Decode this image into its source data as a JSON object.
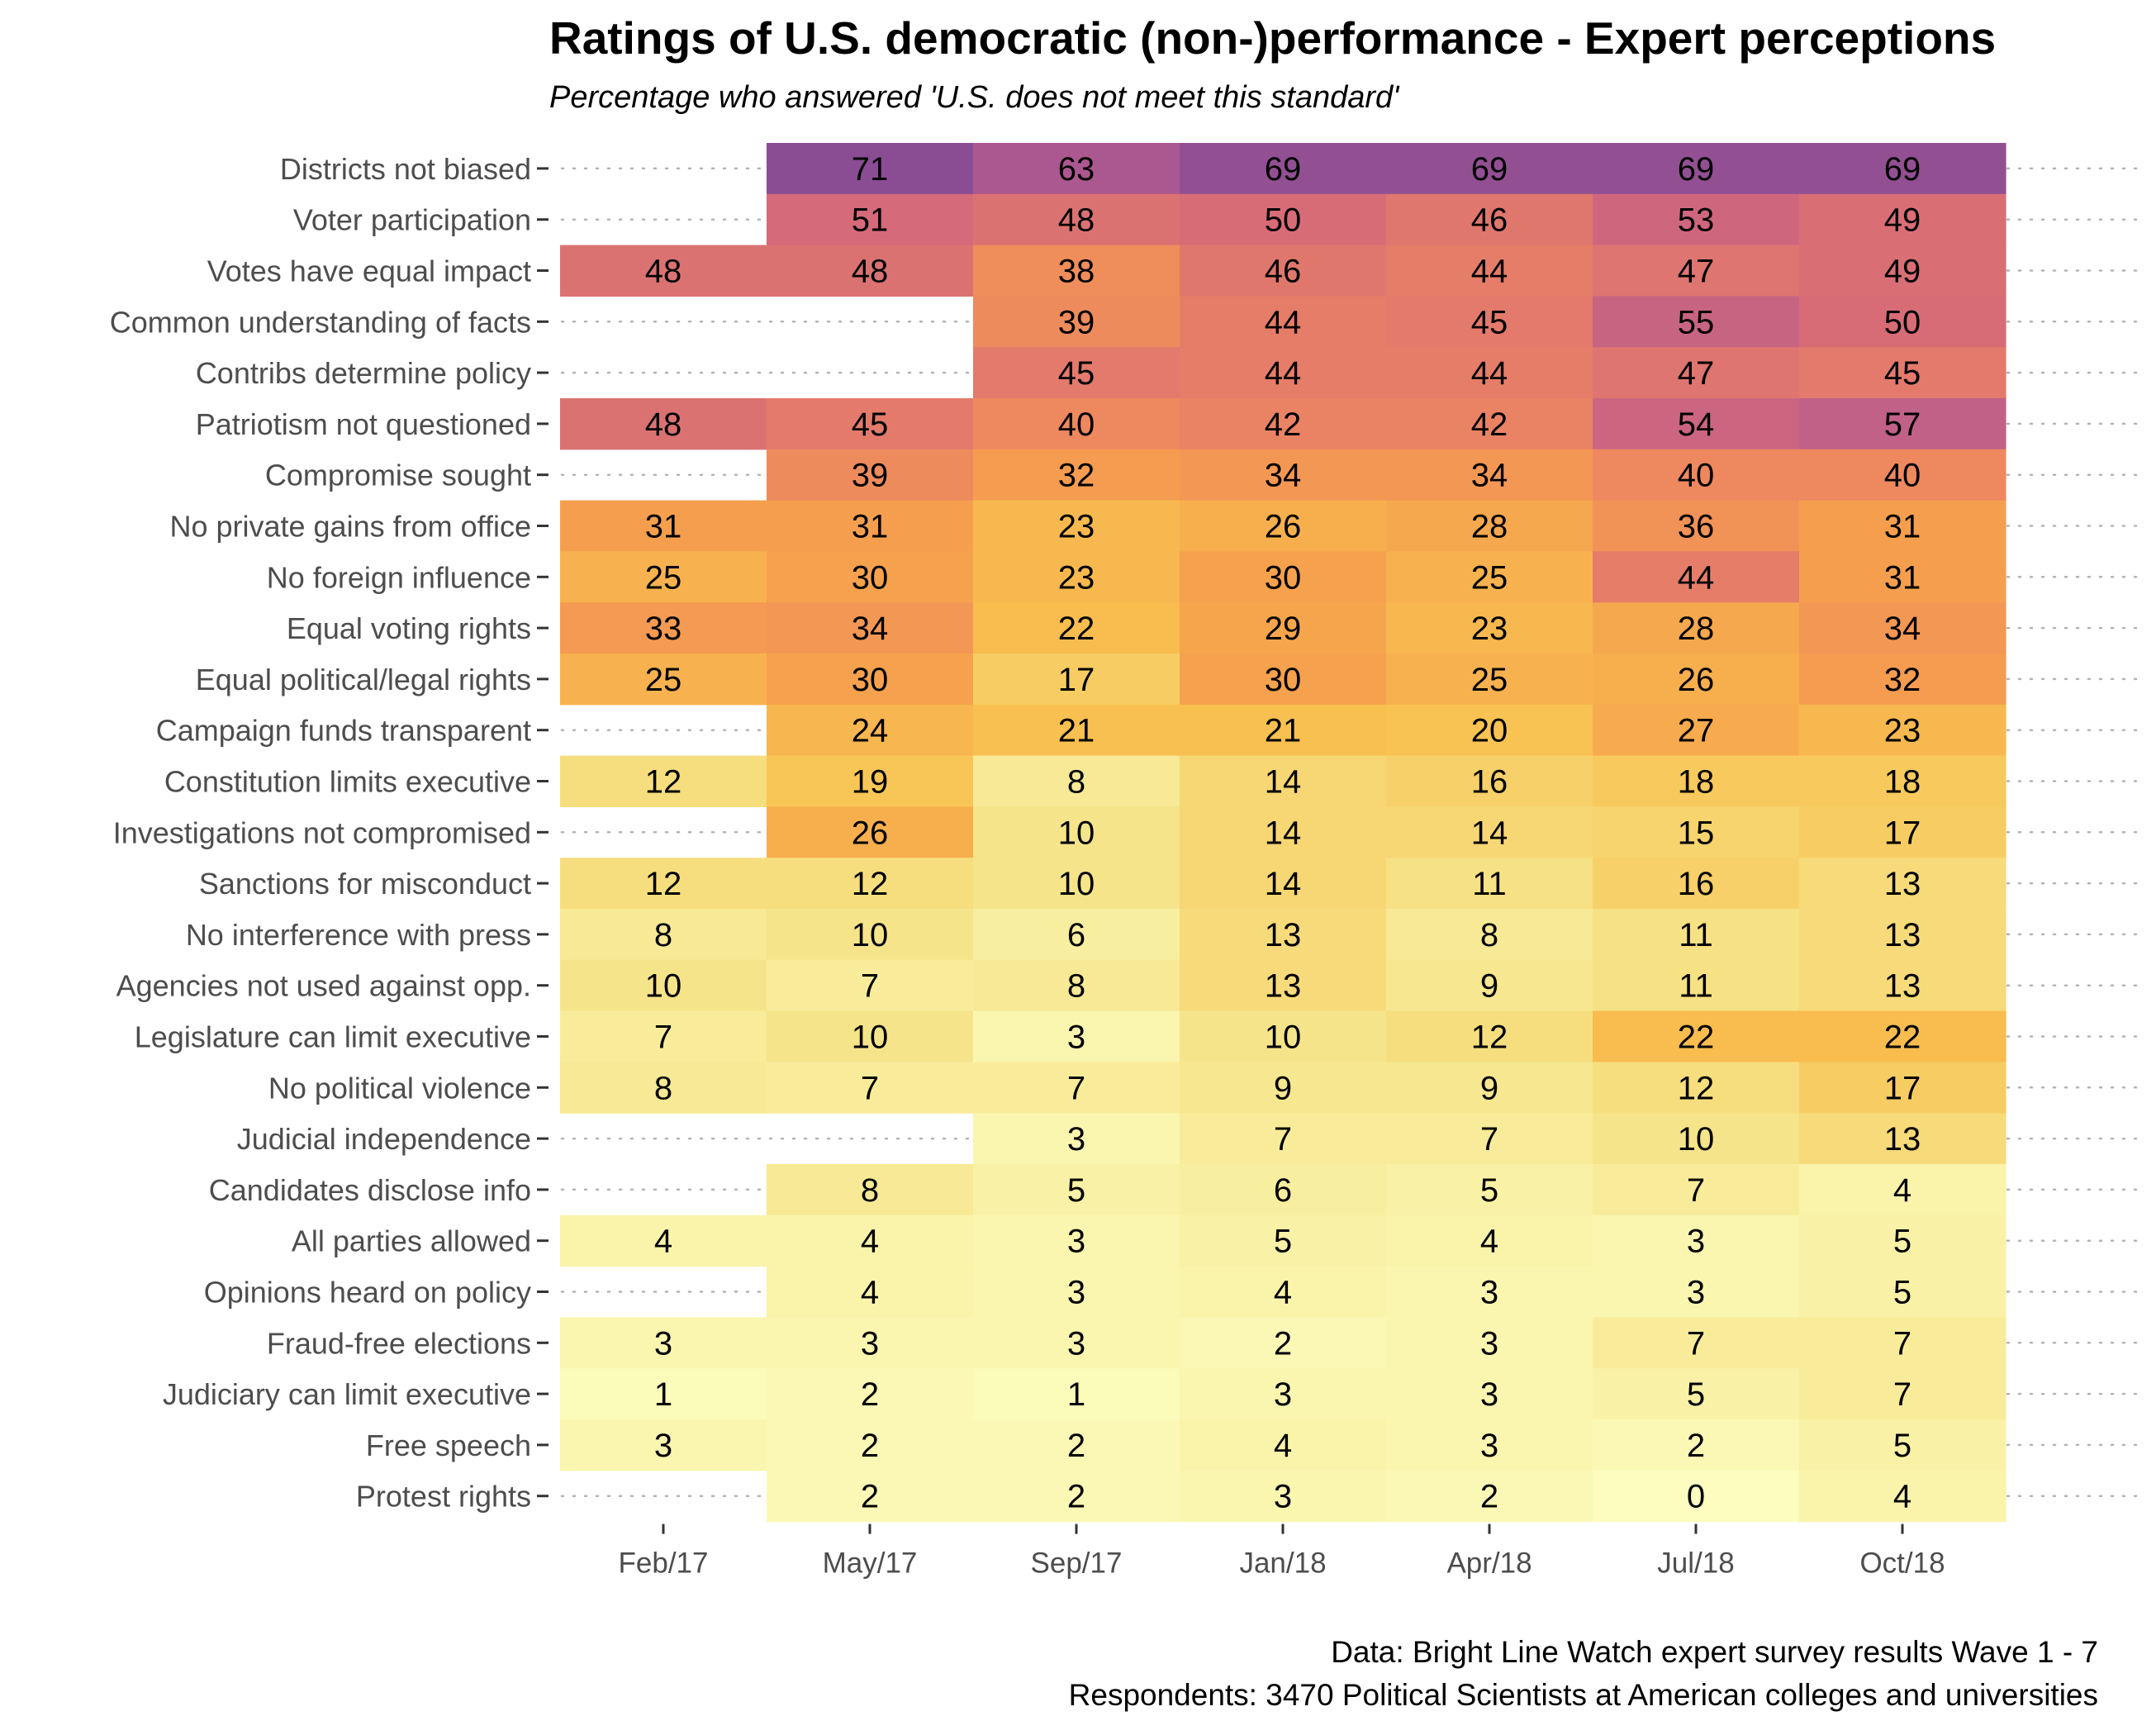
{
  "chart_data": {
    "type": "heatmap",
    "title": "Ratings of U.S. democratic (non-)performance - Expert perceptions",
    "subtitle": "Percentage who answered 'U.S. does not meet this standard'",
    "x_categories": [
      "Feb/17",
      "May/17",
      "Sep/17",
      "Jan/18",
      "Apr/18",
      "Jul/18",
      "Oct/18"
    ],
    "rows": [
      {
        "label": "Districts not biased",
        "values": [
          null,
          71,
          63,
          69,
          69,
          69,
          69
        ]
      },
      {
        "label": "Voter participation",
        "values": [
          null,
          51,
          48,
          50,
          46,
          53,
          49
        ]
      },
      {
        "label": "Votes have equal impact",
        "values": [
          48,
          48,
          38,
          46,
          44,
          47,
          49
        ]
      },
      {
        "label": "Common understanding of facts",
        "values": [
          null,
          null,
          39,
          44,
          45,
          55,
          50
        ]
      },
      {
        "label": "Contribs determine policy",
        "values": [
          null,
          null,
          45,
          44,
          44,
          47,
          45
        ]
      },
      {
        "label": "Patriotism not questioned",
        "values": [
          48,
          45,
          40,
          42,
          42,
          54,
          57
        ]
      },
      {
        "label": "Compromise sought",
        "values": [
          null,
          39,
          32,
          34,
          34,
          40,
          40
        ]
      },
      {
        "label": "No private gains from office",
        "values": [
          31,
          31,
          23,
          26,
          28,
          36,
          31
        ]
      },
      {
        "label": "No foreign influence",
        "values": [
          25,
          30,
          23,
          30,
          25,
          44,
          31
        ]
      },
      {
        "label": "Equal voting rights",
        "values": [
          33,
          34,
          22,
          29,
          23,
          28,
          34
        ]
      },
      {
        "label": "Equal political/legal rights",
        "values": [
          25,
          30,
          17,
          30,
          25,
          26,
          32
        ]
      },
      {
        "label": "Campaign funds transparent",
        "values": [
          null,
          24,
          21,
          21,
          20,
          27,
          23
        ]
      },
      {
        "label": "Constitution limits executive",
        "values": [
          12,
          19,
          8,
          14,
          16,
          18,
          18
        ]
      },
      {
        "label": "Investigations not compromised",
        "values": [
          null,
          26,
          10,
          14,
          14,
          15,
          17
        ]
      },
      {
        "label": "Sanctions for misconduct",
        "values": [
          12,
          12,
          10,
          14,
          11,
          16,
          13
        ]
      },
      {
        "label": "No interference with press",
        "values": [
          8,
          10,
          6,
          13,
          8,
          11,
          13
        ]
      },
      {
        "label": "Agencies not used against opp.",
        "values": [
          10,
          7,
          8,
          13,
          9,
          11,
          13
        ]
      },
      {
        "label": "Legislature can limit executive",
        "values": [
          7,
          10,
          3,
          10,
          12,
          22,
          22
        ]
      },
      {
        "label": "No political violence",
        "values": [
          8,
          7,
          7,
          9,
          9,
          12,
          17
        ]
      },
      {
        "label": "Judicial independence",
        "values": [
          null,
          null,
          3,
          7,
          7,
          10,
          13
        ]
      },
      {
        "label": "Candidates disclose info",
        "values": [
          null,
          8,
          5,
          6,
          5,
          7,
          4
        ]
      },
      {
        "label": "All parties allowed",
        "values": [
          4,
          4,
          3,
          5,
          4,
          3,
          5
        ]
      },
      {
        "label": "Opinions heard on policy",
        "values": [
          null,
          4,
          3,
          4,
          3,
          3,
          5
        ]
      },
      {
        "label": "Fraud-free elections",
        "values": [
          3,
          3,
          3,
          2,
          3,
          7,
          7
        ]
      },
      {
        "label": "Judiciary can limit executive",
        "values": [
          1,
          2,
          1,
          3,
          3,
          5,
          7
        ]
      },
      {
        "label": "Free speech",
        "values": [
          3,
          2,
          2,
          4,
          3,
          2,
          5
        ]
      },
      {
        "label": "Protest rights",
        "values": [
          null,
          2,
          2,
          3,
          2,
          0,
          4
        ]
      }
    ],
    "color_scale": {
      "name": "inferno-reversed",
      "domain": [
        0,
        71
      ],
      "stops": [
        "#fcfdbf",
        "#f6e48a",
        "#f8c250",
        "#f6a04d",
        "#ed8760",
        "#d56a79",
        "#b55b8f",
        "#8a4d94"
      ]
    },
    "grid": "dotted horizontal row guides",
    "legend": "none"
  },
  "caption": {
    "line1": "Data: Bright Line Watch expert survey results Wave 1 - 7",
    "line2": "Respondents: 3470 Political Scientists at American colleges and universities"
  }
}
